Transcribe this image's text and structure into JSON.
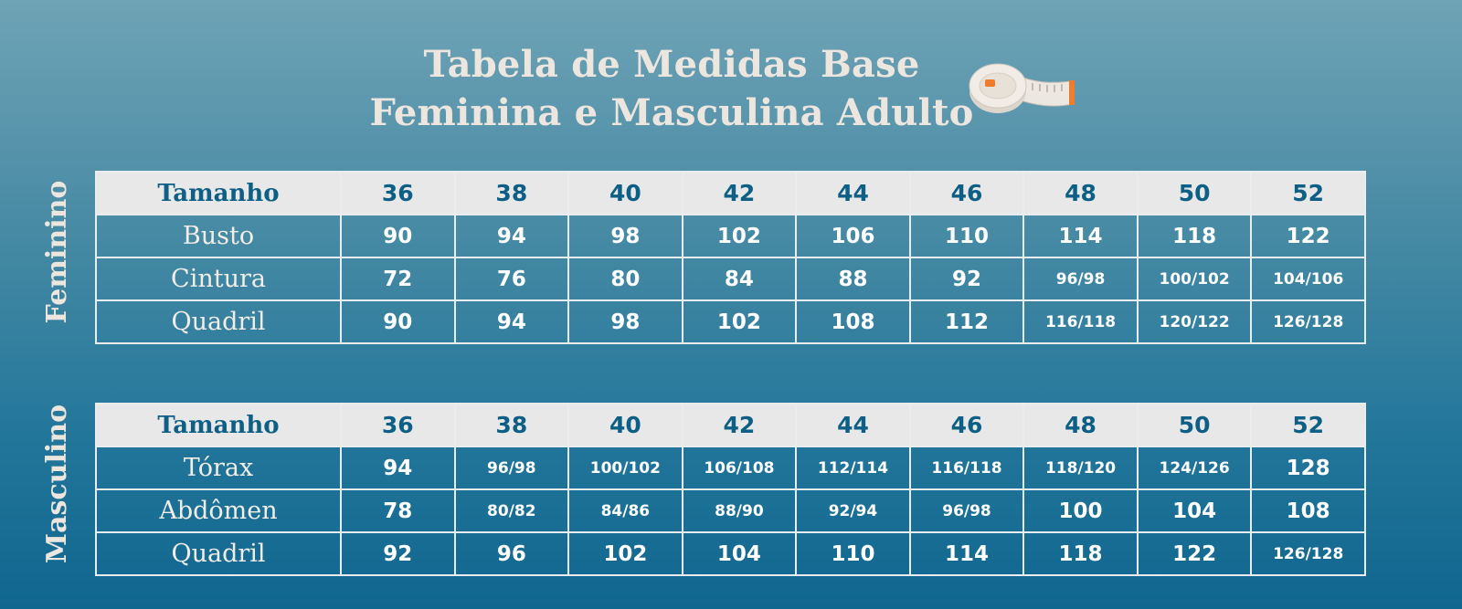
{
  "title": {
    "line1": "Tabela de Medidas Base",
    "line2": "Feminina e Masculina Adulto"
  },
  "icons": {
    "title_icon": "measuring-tape-icon"
  },
  "colors": {
    "header_bg": "#e8e8e8",
    "header_text": "#0d5f85",
    "cell_text": "#ffffff"
  },
  "feminino": {
    "side_label": "Feminino",
    "header": {
      "label": "Tamanho",
      "sizes": [
        "36",
        "38",
        "40",
        "42",
        "44",
        "46",
        "48",
        "50",
        "52"
      ]
    },
    "rows": [
      {
        "label": "Busto",
        "values": [
          "90",
          "94",
          "98",
          "102",
          "106",
          "110",
          "114",
          "118",
          "122"
        ]
      },
      {
        "label": "Cintura",
        "values": [
          "72",
          "76",
          "80",
          "84",
          "88",
          "92",
          "96/98",
          "100/102",
          "104/106"
        ]
      },
      {
        "label": "Quadril",
        "values": [
          "90",
          "94",
          "98",
          "102",
          "108",
          "112",
          "116/118",
          "120/122",
          "126/128"
        ]
      }
    ]
  },
  "masculino": {
    "side_label": "Masculino",
    "header": {
      "label": "Tamanho",
      "sizes": [
        "36",
        "38",
        "40",
        "42",
        "44",
        "46",
        "48",
        "50",
        "52"
      ]
    },
    "rows": [
      {
        "label": "Tórax",
        "values": [
          "94",
          "96/98",
          "100/102",
          "106/108",
          "112/114",
          "116/118",
          "118/120",
          "124/126",
          "128"
        ]
      },
      {
        "label": "Abdômen",
        "values": [
          "78",
          "80/82",
          "84/86",
          "88/90",
          "92/94",
          "96/98",
          "100",
          "104",
          "108"
        ]
      },
      {
        "label": "Quadril",
        "values": [
          "92",
          "96",
          "102",
          "104",
          "110",
          "114",
          "118",
          "122",
          "126/128"
        ]
      }
    ]
  }
}
